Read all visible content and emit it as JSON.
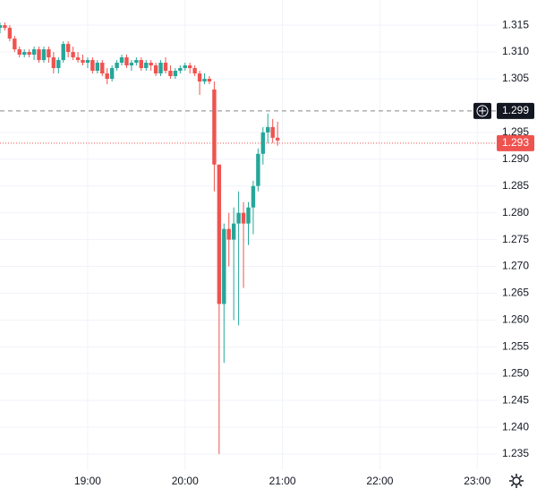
{
  "chart_data": {
    "type": "candlestick",
    "x": [
      "18:06",
      "18:09",
      "18:12",
      "18:15",
      "18:18",
      "18:21",
      "18:24",
      "18:27",
      "18:30",
      "18:33",
      "18:36",
      "18:39",
      "18:42",
      "18:45",
      "18:48",
      "18:51",
      "18:54",
      "18:57",
      "19:00",
      "19:03",
      "19:06",
      "19:09",
      "19:12",
      "19:15",
      "19:18",
      "19:21",
      "19:24",
      "19:27",
      "19:30",
      "19:33",
      "19:36",
      "19:39",
      "19:42",
      "19:45",
      "19:48",
      "19:51",
      "19:54",
      "19:57",
      "20:00",
      "20:03",
      "20:06",
      "20:09",
      "20:12",
      "20:15",
      "20:18",
      "20:21",
      "20:24",
      "20:27",
      "20:30",
      "20:33",
      "20:36",
      "20:39",
      "20:42",
      "20:45",
      "20:48",
      "20:51",
      "20:54",
      "20:57"
    ],
    "open": [
      1.3145,
      1.315,
      1.3145,
      1.3125,
      1.3105,
      1.3095,
      1.31,
      1.3095,
      1.3105,
      1.3085,
      1.3105,
      1.309,
      1.307,
      1.3085,
      1.3115,
      1.31,
      1.309,
      1.3085,
      1.308,
      1.3085,
      1.3065,
      1.308,
      1.306,
      1.305,
      1.307,
      1.308,
      1.309,
      1.3075,
      1.308,
      1.3085,
      1.307,
      1.308,
      1.3075,
      1.306,
      1.308,
      1.3065,
      1.3055,
      1.3065,
      1.307,
      1.3075,
      1.307,
      1.306,
      1.3045,
      1.305,
      1.303,
      1.289,
      1.263,
      1.277,
      1.275,
      1.278,
      1.28,
      1.278,
      1.281,
      1.285,
      1.291,
      1.295,
      1.296,
      1.294
    ],
    "high": [
      1.3155,
      1.3155,
      1.315,
      1.313,
      1.311,
      1.3105,
      1.3105,
      1.311,
      1.311,
      1.311,
      1.311,
      1.31,
      1.309,
      1.312,
      1.312,
      1.311,
      1.31,
      1.3095,
      1.309,
      1.309,
      1.3085,
      1.3085,
      1.307,
      1.3075,
      1.3085,
      1.3095,
      1.3095,
      1.3085,
      1.309,
      1.309,
      1.3085,
      1.3085,
      1.308,
      1.3085,
      1.309,
      1.3075,
      1.307,
      1.3075,
      1.308,
      1.308,
      1.3075,
      1.3065,
      1.306,
      1.3055,
      1.3045,
      1.289,
      1.278,
      1.28,
      1.281,
      1.284,
      1.282,
      1.282,
      1.286,
      1.292,
      1.296,
      1.2985,
      1.2975,
      1.297
    ],
    "low": [
      1.3135,
      1.314,
      1.312,
      1.31,
      1.309,
      1.309,
      1.309,
      1.3085,
      1.308,
      1.308,
      1.308,
      1.306,
      1.306,
      1.308,
      1.309,
      1.3085,
      1.308,
      1.3075,
      1.307,
      1.306,
      1.306,
      1.3055,
      1.304,
      1.3045,
      1.3065,
      1.3075,
      1.307,
      1.3065,
      1.3075,
      1.3065,
      1.3065,
      1.3065,
      1.3055,
      1.3055,
      1.306,
      1.305,
      1.305,
      1.306,
      1.3065,
      1.306,
      1.3055,
      1.302,
      1.304,
      1.304,
      1.284,
      1.235,
      1.252,
      1.27,
      1.26,
      1.259,
      1.266,
      1.274,
      1.276,
      1.284,
      1.289,
      1.293,
      1.293,
      1.2925
    ],
    "close": [
      1.315,
      1.3145,
      1.3125,
      1.3105,
      1.3095,
      1.31,
      1.3095,
      1.3105,
      1.3085,
      1.3105,
      1.309,
      1.307,
      1.3085,
      1.3115,
      1.31,
      1.309,
      1.3085,
      1.308,
      1.3085,
      1.3065,
      1.308,
      1.306,
      1.305,
      1.307,
      1.308,
      1.309,
      1.3075,
      1.308,
      1.3085,
      1.307,
      1.308,
      1.3075,
      1.306,
      1.308,
      1.3065,
      1.3055,
      1.3065,
      1.307,
      1.3075,
      1.307,
      1.306,
      1.3045,
      1.305,
      1.3045,
      1.289,
      1.263,
      1.277,
      1.275,
      1.278,
      1.28,
      1.278,
      1.281,
      1.285,
      1.291,
      1.295,
      1.296,
      1.294,
      1.2935
    ],
    "up_color": "#26a69a",
    "down_color": "#ef5350",
    "xlim": [
      "18:06",
      "23:12"
    ],
    "xticks": [
      "19:00",
      "20:00",
      "21:00",
      "22:00",
      "23:00"
    ],
    "ylim": [
      1.232,
      1.3197
    ],
    "yticks": [
      1.315,
      {
        "value": 1.31,
        "label": "1.310"
      },
      1.305,
      1.295,
      {
        "value": 1.29,
        "label": "1.290"
      },
      1.285,
      {
        "value": 1.28,
        "label": "1.280"
      },
      1.275,
      {
        "value": 1.27,
        "label": "1.270"
      },
      1.265,
      {
        "value": 1.26,
        "label": "1.260"
      },
      1.255,
      {
        "value": 1.25,
        "label": "1.250"
      },
      1.245,
      {
        "value": 1.24,
        "label": "1.240"
      },
      1.235
    ],
    "grid": true,
    "price_lines": [
      {
        "value": 1.299,
        "color": "#131722",
        "style": "dashed"
      },
      {
        "value": 1.293,
        "color": "#ef5350",
        "style": "dotted"
      }
    ]
  }
}
